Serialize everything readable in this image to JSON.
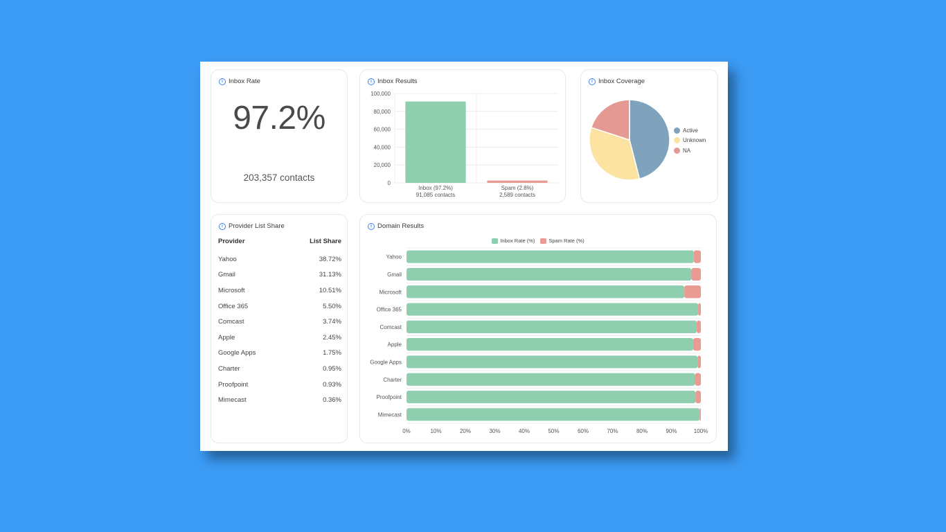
{
  "colors": {
    "inbox": "#8fcfb0",
    "spam": "#e89a93",
    "active": "#7fa3bd",
    "unknown": "#fde3a1",
    "na": "#e49a93",
    "grid": "#ececec",
    "axis_text": "#555555"
  },
  "inbox_rate": {
    "title": "Inbox Rate",
    "value_text": "97.2%",
    "contacts_text": "203,357 contacts"
  },
  "inbox_results": {
    "title": "Inbox Results"
  },
  "inbox_coverage": {
    "title": "Inbox Coverage"
  },
  "provider_share": {
    "title": "Provider List Share",
    "columns": [
      "Provider",
      "List Share"
    ],
    "rows": [
      {
        "provider": "Yahoo",
        "share": "38.72%"
      },
      {
        "provider": "Gmail",
        "share": "31.13%"
      },
      {
        "provider": "Microsoft",
        "share": "10.51%"
      },
      {
        "provider": "Office 365",
        "share": "5.50%"
      },
      {
        "provider": "Comcast",
        "share": "3.74%"
      },
      {
        "provider": "Apple",
        "share": "2.45%"
      },
      {
        "provider": "Google Apps",
        "share": "1.75%"
      },
      {
        "provider": "Charter",
        "share": "0.95%"
      },
      {
        "provider": "Proofpoint",
        "share": "0.93%"
      },
      {
        "provider": "Mimecast",
        "share": "0.36%"
      }
    ]
  },
  "domain_results": {
    "title": "Domain Results"
  },
  "chart_data": [
    {
      "type": "bar",
      "categories": [
        "Inbox (97.2%)",
        "Spam (2.8%)"
      ],
      "category_sublabels": [
        "91,085 contacts",
        "2,589 contacts"
      ],
      "values": [
        91085,
        2589
      ],
      "ylim": [
        0,
        100000
      ],
      "yticks": [
        "100,000",
        "80,000",
        "60,000",
        "40,000",
        "20,000",
        "0"
      ],
      "ytick_values": [
        100000,
        80000,
        60000,
        40000,
        20000,
        0
      ],
      "grid": true
    },
    {
      "type": "pie",
      "labels": [
        "Active",
        "Unknown",
        "NA"
      ],
      "values": [
        46,
        34,
        20
      ],
      "legend": "right"
    },
    {
      "type": "bar",
      "orientation": "horizontal",
      "stacked": true,
      "categories": [
        "Yahoo",
        "Gmail",
        "Microsoft",
        "Office 365",
        "Comcast",
        "Apple",
        "Google Apps",
        "Charter",
        "Proofpoint",
        "Mimecast"
      ],
      "series": [
        {
          "name": "Inbox Rate (%)",
          "values": [
            97.6,
            96.8,
            94.4,
            99.1,
            98.6,
            97.4,
            98.9,
            98.0,
            98.2,
            99.6
          ]
        },
        {
          "name": "Spam Rate (%)",
          "values": [
            2.4,
            3.2,
            5.6,
            0.9,
            1.4,
            2.6,
            1.1,
            2.0,
            1.8,
            0.4
          ]
        }
      ],
      "xlim": [
        0,
        100
      ],
      "xticks": [
        "0%",
        "10%",
        "20%",
        "30%",
        "40%",
        "50%",
        "60%",
        "70%",
        "80%",
        "90%",
        "100%"
      ],
      "legend": "top"
    }
  ]
}
